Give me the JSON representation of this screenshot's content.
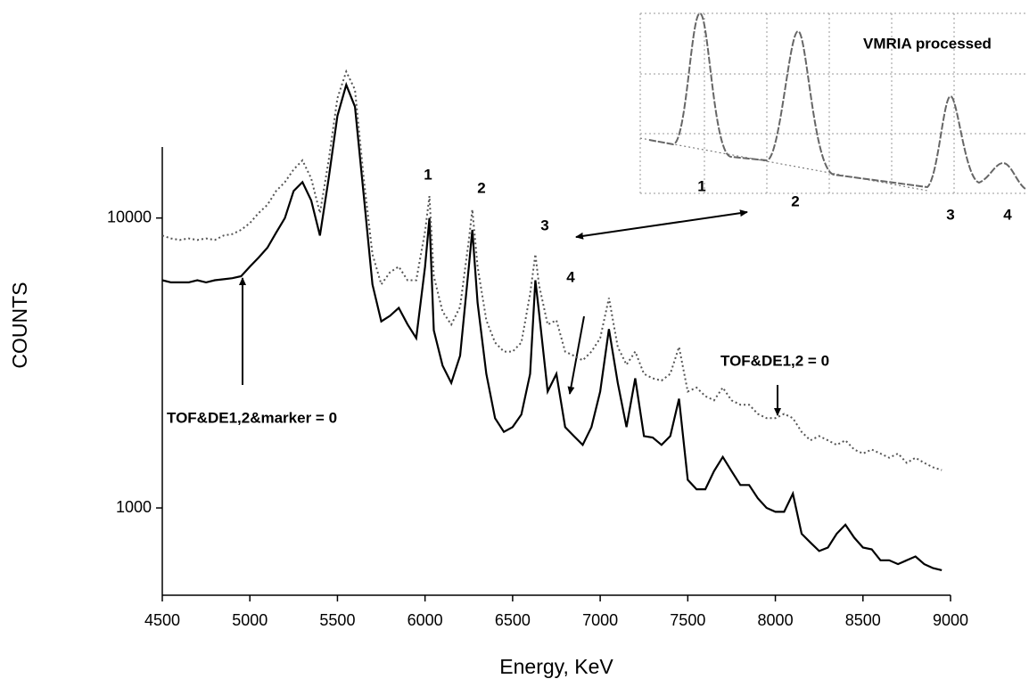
{
  "chart_data": {
    "type": "line",
    "xlabel": "Energy, KeV",
    "ylabel": "COUNTS",
    "log_y": true,
    "xlim": [
      4500,
      9000
    ],
    "ylim": [
      500,
      35000
    ],
    "xticks": [
      4500,
      5000,
      5500,
      6000,
      6500,
      7000,
      7500,
      8000,
      8500,
      9000
    ],
    "yticks": [
      1000,
      10000
    ],
    "x": [
      4500,
      4550,
      4600,
      4650,
      4700,
      4750,
      4800,
      4850,
      4900,
      4950,
      5000,
      5050,
      5100,
      5150,
      5200,
      5250,
      5300,
      5350,
      5400,
      5450,
      5500,
      5550,
      5600,
      5650,
      5700,
      5750,
      5800,
      5850,
      5900,
      5950,
      6000,
      6025,
      6050,
      6100,
      6150,
      6200,
      6250,
      6270,
      6300,
      6350,
      6400,
      6450,
      6500,
      6550,
      6600,
      6630,
      6650,
      6700,
      6750,
      6800,
      6850,
      6900,
      6950,
      7000,
      7050,
      7100,
      7150,
      7200,
      7250,
      7300,
      7350,
      7400,
      7450,
      7500,
      7550,
      7600,
      7650,
      7700,
      7750,
      7800,
      7850,
      7900,
      7950,
      8000,
      8050,
      8100,
      8150,
      8200,
      8250,
      8300,
      8350,
      8400,
      8450,
      8500,
      8550,
      8600,
      8650,
      8700,
      8750,
      8800,
      8850,
      8900,
      8950
    ],
    "series": [
      {
        "color": "#000000",
        "line_style": "solid",
        "values": [
          6100,
          6000,
          6000,
          6000,
          6100,
          6000,
          6100,
          6150,
          6200,
          6300,
          6800,
          7300,
          7900,
          8900,
          10000,
          12400,
          13300,
          11500,
          8700,
          13700,
          22500,
          28800,
          24200,
          12000,
          5900,
          4400,
          4600,
          4900,
          4300,
          3850,
          6800,
          10000,
          4100,
          3100,
          2700,
          3350,
          6800,
          9100,
          5100,
          2900,
          2040,
          1830,
          1900,
          2100,
          2900,
          6100,
          4760,
          2520,
          2900,
          1900,
          1770,
          1650,
          1900,
          2520,
          4140,
          2700,
          1900,
          2800,
          1770,
          1750,
          1650,
          1770,
          2380,
          1250,
          1160,
          1160,
          1340,
          1500,
          1340,
          1200,
          1200,
          1080,
          1000,
          970,
          970,
          1120,
          815,
          760,
          710,
          730,
          815,
          875,
          790,
          730,
          720,
          660,
          660,
          640,
          660,
          680,
          640,
          620,
          610
        ]
      },
      {
        "color": "#555555",
        "line_style": "dotted",
        "values": [
          8700,
          8500,
          8400,
          8500,
          8400,
          8500,
          8400,
          8700,
          8800,
          9100,
          9600,
          10400,
          11100,
          12400,
          13300,
          14700,
          15800,
          13700,
          10400,
          15800,
          25900,
          32000,
          27700,
          13700,
          7500,
          5900,
          6500,
          6800,
          6100,
          6100,
          9000,
          11900,
          6300,
          4760,
          4290,
          4940,
          8400,
          10700,
          6800,
          4440,
          3720,
          3460,
          3460,
          3720,
          5470,
          7500,
          5900,
          4290,
          4440,
          3460,
          3350,
          3230,
          3460,
          3850,
          5300,
          3590,
          3120,
          3460,
          2900,
          2800,
          2750,
          2900,
          3590,
          2520,
          2600,
          2430,
          2350,
          2600,
          2350,
          2270,
          2270,
          2110,
          2040,
          2040,
          2110,
          2040,
          1830,
          1710,
          1770,
          1710,
          1650,
          1710,
          1590,
          1540,
          1590,
          1540,
          1490,
          1540,
          1430,
          1490,
          1430,
          1380,
          1350
        ]
      }
    ],
    "annotations": [
      "1",
      "2",
      "3",
      "4",
      "TOF&DE1,2&marker = 0",
      "TOF&DE1,2 = 0"
    ],
    "inset": {
      "title": "VMRIA processed",
      "peak_labels": [
        "1",
        "2",
        "3",
        "4"
      ]
    }
  }
}
